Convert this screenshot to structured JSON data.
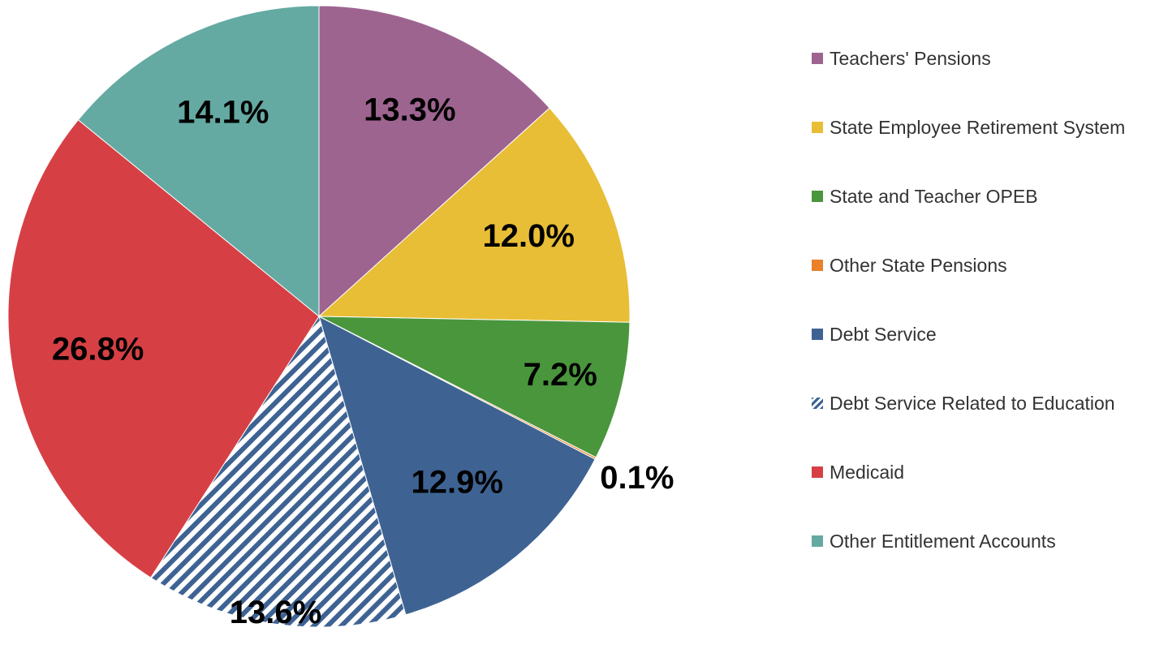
{
  "chart_data": {
    "type": "pie",
    "categories": [
      "Teachers' Pensions",
      "State Employee Retirement System",
      "State and Teacher OPEB",
      "Other State Pensions",
      "Debt Service",
      "Debt Service Related to Education",
      "Medicaid",
      "Other Entitlement Accounts"
    ],
    "values": [
      13.3,
      12.0,
      7.2,
      0.1,
      12.9,
      13.6,
      26.8,
      14.1
    ],
    "value_labels": [
      "13.3%",
      "12.0%",
      "7.2%",
      "0.1%",
      "12.9%",
      "13.6%",
      "26.8%",
      "14.1%"
    ],
    "colors": [
      "#9e6490",
      "#e8be36",
      "#4a963d",
      "#e8812a",
      "#3e6393",
      "#3e6393",
      "#d64045",
      "#64aaa3"
    ],
    "hatched": [
      false,
      false,
      false,
      false,
      false,
      true,
      false,
      false
    ],
    "legend": "right"
  }
}
